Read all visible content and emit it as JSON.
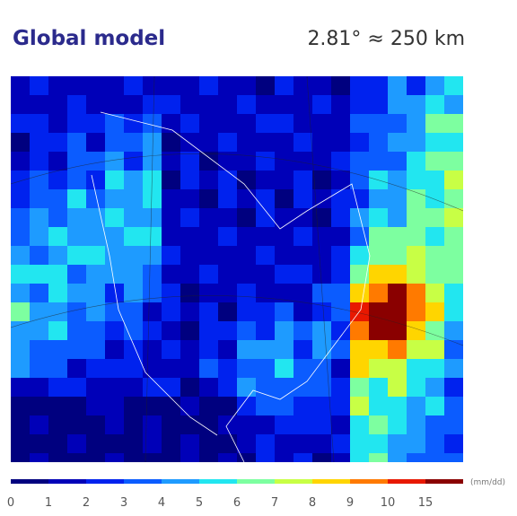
{
  "title": "Global model",
  "resolution": "2.81° ≈ 250 km",
  "colorbar": {
    "ticks": [
      0,
      1,
      2,
      3,
      4,
      5,
      6,
      7,
      8,
      9,
      10,
      15
    ],
    "colors": [
      "#00007f",
      "#0000b8",
      "#0022ee",
      "#0b5cff",
      "#1e9bff",
      "#22e6f0",
      "#7dffa0",
      "#c8ff45",
      "#ffd500",
      "#ff7a00",
      "#e81800",
      "#8a0000"
    ],
    "unit": "(mm/dd)"
  }
}
